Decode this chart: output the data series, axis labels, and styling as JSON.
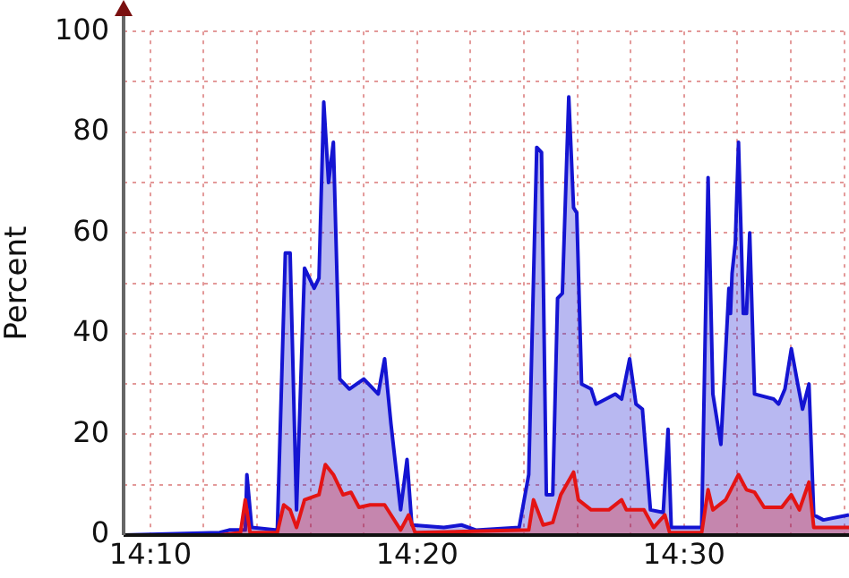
{
  "chart_data": {
    "type": "area",
    "ylabel": "Percent",
    "xlim": [
      14.15,
      14.603
    ],
    "xticks": [
      {
        "value": 14.1667,
        "label": "14:10"
      },
      {
        "value": 14.2,
        "label": null
      },
      {
        "value": 14.2333,
        "label": null
      },
      {
        "value": 14.2667,
        "label": null
      },
      {
        "value": 14.3,
        "label": null
      },
      {
        "value": 14.3333,
        "label": "14:20"
      },
      {
        "value": 14.3667,
        "label": null
      },
      {
        "value": 14.4,
        "label": null
      },
      {
        "value": 14.4333,
        "label": null
      },
      {
        "value": 14.4667,
        "label": null
      },
      {
        "value": 14.5,
        "label": "14:30"
      },
      {
        "value": 14.5333,
        "label": null
      },
      {
        "value": 14.5667,
        "label": null
      },
      {
        "value": 14.6,
        "label": null
      }
    ],
    "ylim": [
      0,
      100
    ],
    "yticks": [
      0,
      {
        "value": 10,
        "label": null
      },
      20,
      {
        "value": 30,
        "label": null
      },
      40,
      {
        "value": 50,
        "label": null
      },
      60,
      {
        "value": 70,
        "label": null
      },
      80,
      {
        "value": 90,
        "label": null
      },
      100
    ],
    "grid": true,
    "legend": false,
    "marker": "none",
    "line_style": "solid",
    "series": [
      {
        "color": "#1414d2",
        "x": [
          14.15,
          14.21,
          14.216,
          14.226,
          14.227,
          14.23,
          14.246,
          14.251,
          14.254,
          14.258,
          14.263,
          14.269,
          14.272,
          14.275,
          14.278,
          14.281,
          14.285,
          14.291,
          14.3,
          14.309,
          14.313,
          14.317,
          14.323,
          14.327,
          14.33,
          14.35,
          14.361,
          14.37,
          14.397,
          14.403,
          14.408,
          14.411,
          14.414,
          14.418,
          14.421,
          14.424,
          14.428,
          14.431,
          14.433,
          14.436,
          14.442,
          14.445,
          14.457,
          14.461,
          14.466,
          14.47,
          14.474,
          14.479,
          14.487,
          14.49,
          14.492,
          14.511,
          14.515,
          14.518,
          14.523,
          14.528,
          14.529,
          14.53,
          14.532,
          14.534,
          14.537,
          14.539,
          14.541,
          14.544,
          14.556,
          14.559,
          14.563,
          14.567,
          14.571,
          14.574,
          14.578,
          14.581,
          14.587,
          14.603
        ],
        "values": [
          0,
          0.5,
          1,
          1,
          12,
          1.5,
          1,
          56,
          56,
          5,
          53,
          49,
          51,
          86,
          70,
          78,
          31,
          29,
          31,
          28,
          35,
          22,
          5,
          15,
          2,
          1.5,
          2,
          1,
          1.5,
          12,
          77,
          76,
          8,
          8,
          47,
          48,
          87,
          65,
          64,
          30,
          29,
          26,
          28,
          27,
          35,
          26,
          25,
          5,
          4.5,
          21,
          1.5,
          1.5,
          71,
          28,
          18,
          49,
          44,
          52,
          58,
          78,
          44,
          44,
          60,
          28,
          27,
          26,
          29,
          37,
          30,
          25,
          30,
          4,
          3,
          4
        ]
      },
      {
        "color": "#e41414",
        "x": [
          14.15,
          14.21,
          14.223,
          14.226,
          14.229,
          14.246,
          14.25,
          14.254,
          14.258,
          14.263,
          14.272,
          14.276,
          14.281,
          14.287,
          14.292,
          14.297,
          14.304,
          14.313,
          14.317,
          14.323,
          14.328,
          14.332,
          14.403,
          14.406,
          14.412,
          14.418,
          14.423,
          14.431,
          14.434,
          14.442,
          14.453,
          14.461,
          14.464,
          14.475,
          14.481,
          14.488,
          14.491,
          14.511,
          14.515,
          14.518,
          14.526,
          14.534,
          14.539,
          14.544,
          14.55,
          14.561,
          14.567,
          14.572,
          14.578,
          14.581,
          14.603
        ],
        "values": [
          0,
          0,
          0.5,
          7,
          0.5,
          0.5,
          6,
          5,
          1.5,
          7,
          8,
          14,
          12,
          8,
          8.5,
          5.5,
          6,
          6,
          4,
          1,
          4,
          0.5,
          1,
          7,
          2,
          2.5,
          8,
          12.5,
          7,
          5,
          5,
          7,
          5,
          5,
          1.5,
          4,
          0.5,
          0.5,
          9,
          5,
          7,
          12,
          9,
          8.5,
          5.5,
          5.5,
          8,
          5,
          10.5,
          1.5,
          1.5
        ]
      }
    ]
  }
}
